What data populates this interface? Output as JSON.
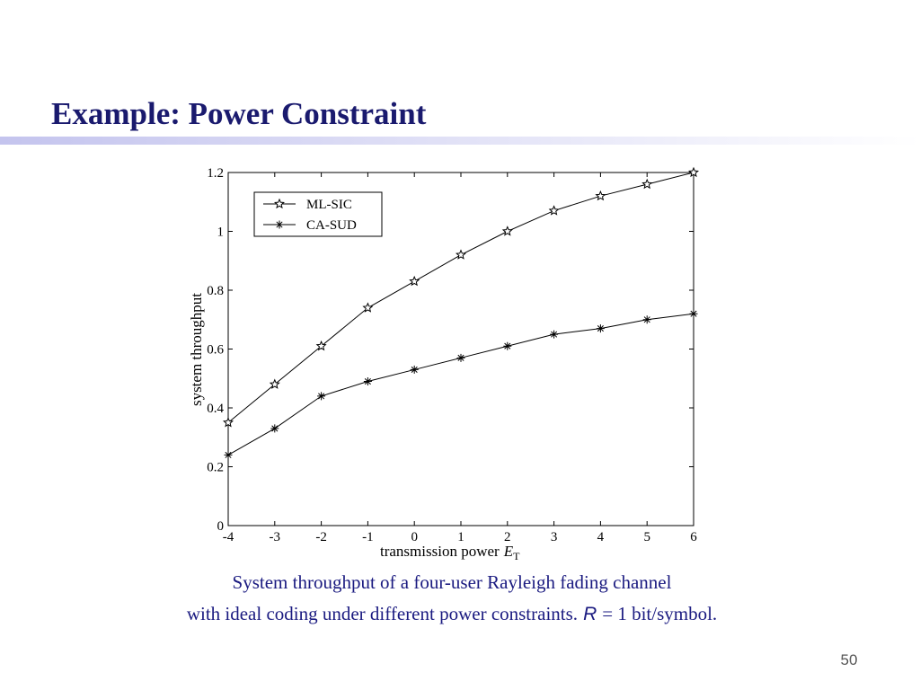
{
  "slide": {
    "title": "Example: Power Constraint",
    "caption": [
      "System throughput of a four-user Rayleigh fading channel",
      "with ideal coding under different power constraints.",
      "R",
      "= 1 bit/symbol."
    ],
    "page_number": "50"
  },
  "chart_data": {
    "type": "line",
    "x_label": {
      "text": "transmission power",
      "symbol": "E",
      "subscript": "T"
    },
    "y_label": "system throughput",
    "x": [
      -4,
      -3,
      -2,
      -1,
      0,
      1,
      2,
      3,
      4,
      5,
      6
    ],
    "series": [
      {
        "name": "ML-SIC",
        "color": "#000000",
        "marker": "star",
        "values": [
          0.35,
          0.48,
          0.61,
          0.74,
          0.83,
          0.92,
          1.0,
          1.07,
          1.12,
          1.16,
          1.2
        ]
      },
      {
        "name": "CA-SUD",
        "color": "#000000",
        "marker": "asterisk",
        "values": [
          0.24,
          0.33,
          0.44,
          0.49,
          0.53,
          0.57,
          0.61,
          0.65,
          0.67,
          0.7,
          0.72
        ]
      }
    ],
    "xlim": [
      -4,
      6
    ],
    "xticks": [
      -4,
      -3,
      -2,
      -1,
      0,
      1,
      2,
      3,
      4,
      5,
      6
    ],
    "ylim": [
      0,
      1.2
    ],
    "yticks": [
      0,
      0.2,
      0.4,
      0.6,
      0.8,
      1,
      1.2
    ],
    "legend": "upper left"
  }
}
